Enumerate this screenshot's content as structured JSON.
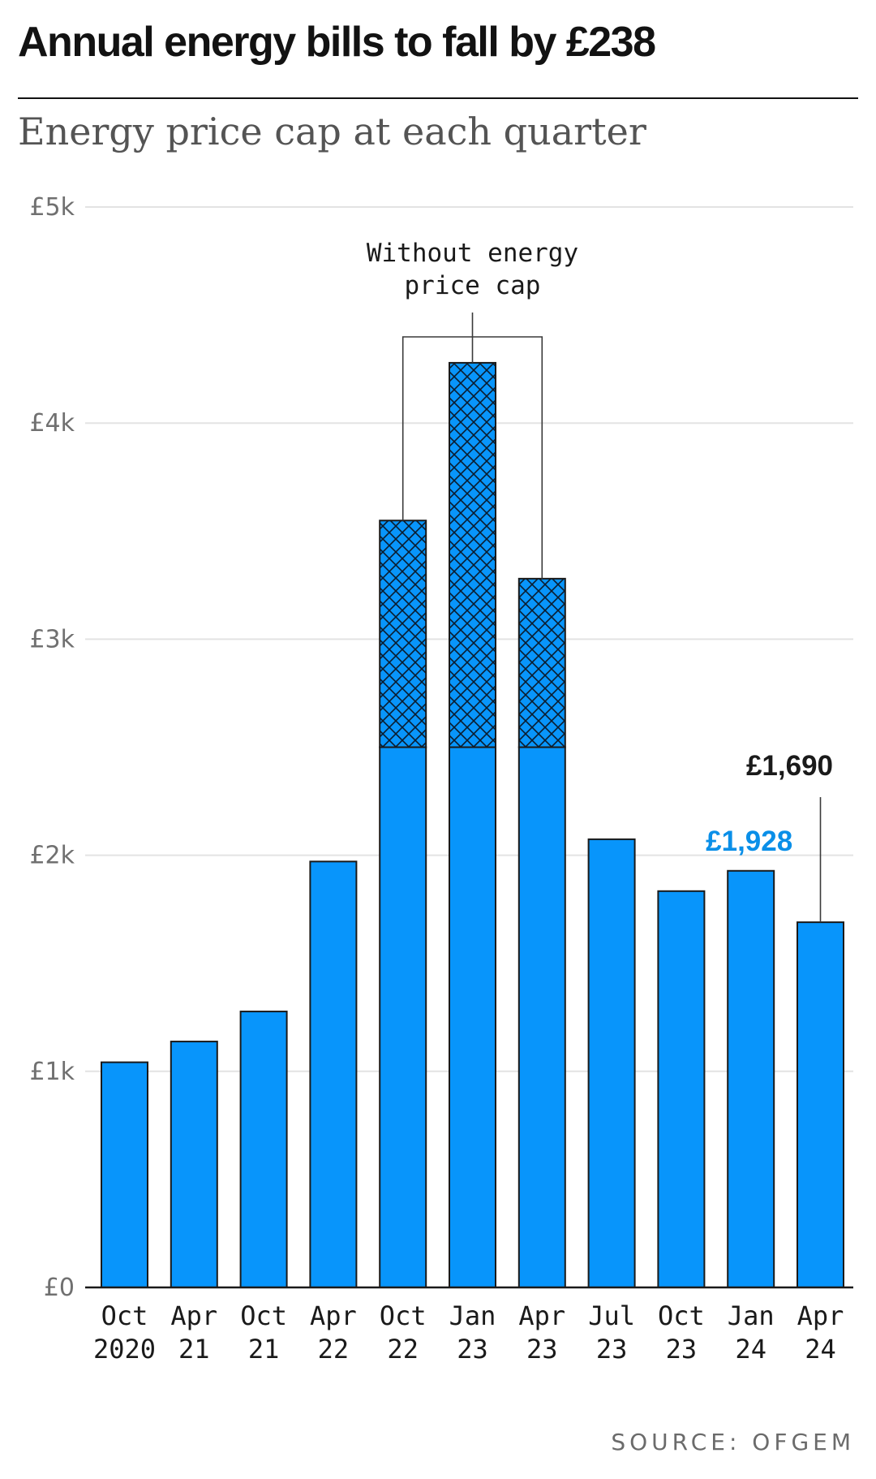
{
  "header": {
    "title": "Annual energy bills to fall by £238",
    "subtitle": "Energy price cap at each quarter"
  },
  "footer": {
    "source": "SOURCE: OFGEM"
  },
  "colors": {
    "bar": "#0895fb",
    "bar_stroke": "#1a1a1a",
    "highlight_label": "#0a8fe8",
    "gridline": "#e3e3e3",
    "text": "#1a1a1a"
  },
  "chart_data": {
    "type": "bar",
    "title": "Annual energy bills to fall by £238",
    "subtitle": "Energy price cap at each quarter",
    "categories": [
      [
        "Oct",
        "2020"
      ],
      [
        "Apr",
        "21"
      ],
      [
        "Oct",
        "21"
      ],
      [
        "Apr",
        "22"
      ],
      [
        "Oct",
        "22"
      ],
      [
        "Jan",
        "23"
      ],
      [
        "Apr",
        "23"
      ],
      [
        "Jul",
        "23"
      ],
      [
        "Oct",
        "23"
      ],
      [
        "Jan",
        "24"
      ],
      [
        "Apr",
        "24"
      ]
    ],
    "values": [
      1042,
      1138,
      1277,
      1971,
      3549,
      4279,
      3280,
      2074,
      1834,
      1928,
      1690
    ],
    "capped_values": [
      null,
      null,
      null,
      null,
      2500,
      2500,
      2500,
      null,
      null,
      null,
      null
    ],
    "ylim": [
      0,
      5000
    ],
    "yticks": [
      0,
      1000,
      2000,
      3000,
      4000,
      5000
    ],
    "ytick_labels": [
      "£0",
      "£1k",
      "£2k",
      "£3k",
      "£4k",
      "£5k"
    ],
    "grid": true,
    "annotations": {
      "without_cap_line1": "Without energy",
      "without_cap_line2": "price cap",
      "label_jan24": "£1,928",
      "label_apr24": "£1,690"
    }
  }
}
